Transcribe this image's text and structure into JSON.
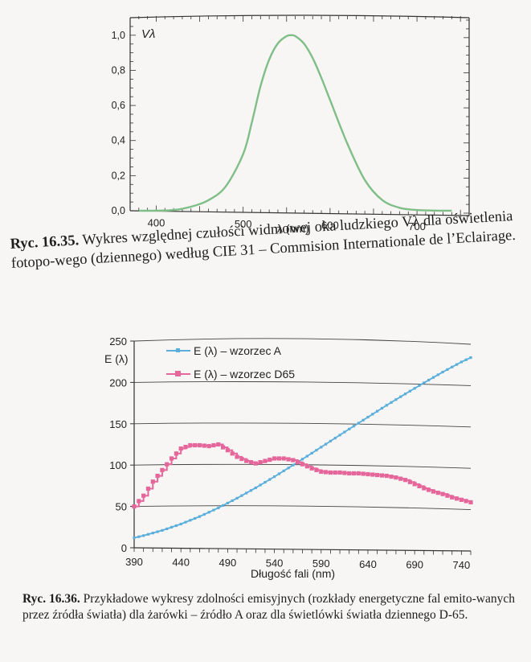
{
  "chart_data": [
    {
      "type": "line",
      "title": "",
      "xlabel": "λ (nm)",
      "ylabel": "Vλ",
      "xlim": [
        370,
        760
      ],
      "ylim": [
        0,
        1.1
      ],
      "x_ticks": [
        "400",
        "500",
        "600",
        "700"
      ],
      "y_ticks": [
        "0,0",
        "0,2",
        "0,4",
        "0,6",
        "0,8",
        "1,0"
      ],
      "series": [
        {
          "name": "Vλ",
          "color": "#7fbf87",
          "x": [
            380,
            400,
            420,
            440,
            460,
            480,
            500,
            510,
            520,
            530,
            540,
            550,
            555,
            560,
            570,
            580,
            590,
            600,
            620,
            640,
            660,
            680,
            700,
            720,
            740
          ],
          "y": [
            0.0,
            0.0004,
            0.004,
            0.023,
            0.06,
            0.139,
            0.323,
            0.503,
            0.71,
            0.862,
            0.954,
            0.995,
            1.0,
            0.995,
            0.952,
            0.87,
            0.757,
            0.631,
            0.381,
            0.175,
            0.061,
            0.017,
            0.0041,
            0.001,
            0.0003
          ]
        }
      ]
    },
    {
      "type": "line",
      "title": "",
      "xlabel": "Długość fali (nm)",
      "ylabel": "E (λ)",
      "xlim": [
        390,
        750
      ],
      "ylim": [
        0,
        250
      ],
      "x_ticks": [
        "390",
        "440",
        "490",
        "540",
        "590",
        "640",
        "690",
        "740"
      ],
      "y_ticks": [
        "0",
        "50",
        "100",
        "150",
        "200",
        "250"
      ],
      "legend": "top-left",
      "series": [
        {
          "name": "E (λ) – wzorzec A",
          "color": "#5aaedb",
          "x": [
            390,
            400,
            420,
            440,
            460,
            480,
            500,
            520,
            540,
            560,
            580,
            600,
            620,
            640,
            660,
            680,
            700,
            720,
            740,
            750
          ],
          "y": [
            12,
            14.7,
            21.0,
            28.7,
            37.8,
            48.2,
            59.9,
            72.5,
            86.0,
            100.0,
            114.4,
            129.0,
            143.6,
            158.0,
            172.3,
            186.1,
            199.5,
            212.5,
            224.7,
            230.0
          ]
        },
        {
          "name": "E (λ) – wzorzec D65",
          "color": "#e5669a",
          "x": [
            390,
            400,
            410,
            420,
            430,
            440,
            450,
            460,
            470,
            480,
            490,
            500,
            510,
            520,
            530,
            540,
            550,
            560,
            570,
            580,
            590,
            600,
            610,
            620,
            630,
            640,
            650,
            660,
            670,
            680,
            690,
            700,
            710,
            720,
            730,
            740,
            750
          ],
          "y": [
            50,
            63,
            80,
            94,
            108,
            120,
            124,
            124,
            123,
            125,
            118,
            110,
            105,
            102,
            105,
            108,
            108,
            106,
            101,
            96,
            92,
            91,
            91,
            90,
            90,
            89,
            88,
            87,
            85,
            82,
            77,
            72,
            68,
            65,
            61,
            58,
            55
          ]
        }
      ]
    }
  ],
  "captions": {
    "fig1": {
      "label": "Ryc. 16.35.",
      "text": "Wykres względnej czułości widmowej oka ludzkiego Vλ dla oświetlenia fotopo-wego (dziennego) według CIE 31 – Commision Internationale de l’Eclairage."
    },
    "fig2": {
      "label": "Ryc. 16.36.",
      "text": "Przykładowe wykresy zdolności emisyjnych (rozkłady energetyczne fal emito-wanych przez źródła światła) dla żarówki – źródło A oraz dla świetlówki światła dziennego D-65."
    }
  }
}
